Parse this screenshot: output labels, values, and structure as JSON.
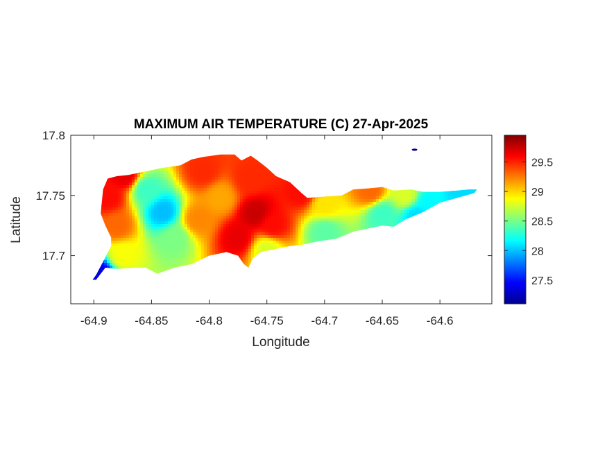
{
  "chart_data": {
    "type": "heatmap",
    "title": "MAXIMUM AIR TEMPERATURE (C) 27-Apr-2025",
    "xlabel": "Longitude",
    "ylabel": "Latitude",
    "xlim": [
      -64.92,
      -64.555
    ],
    "ylim": [
      17.66,
      17.8
    ],
    "x_ticks": [
      -64.9,
      -64.85,
      -64.8,
      -64.75,
      -64.7,
      -64.65,
      -64.6
    ],
    "x_tick_labels": [
      "-64.9",
      "-64.85",
      "-64.8",
      "-64.75",
      "-64.7",
      "-64.65",
      "-64.6"
    ],
    "y_ticks": [
      17.7,
      17.75,
      17.8
    ],
    "y_tick_labels": [
      "17.7",
      "17.75",
      "17.8"
    ],
    "colorbar": {
      "colormap": "jet",
      "range": [
        27.1,
        29.95
      ],
      "ticks": [
        27.5,
        28,
        28.5,
        29,
        29.5
      ],
      "tick_labels": [
        "27.5",
        "28",
        "28.5",
        "29",
        "29.5"
      ]
    },
    "island_outline": [
      [
        -64.898,
        17.68
      ],
      [
        -64.89,
        17.69
      ],
      [
        -64.88,
        17.689
      ],
      [
        -64.865,
        17.69
      ],
      [
        -64.855,
        17.69
      ],
      [
        -64.845,
        17.685
      ],
      [
        -64.83,
        17.69
      ],
      [
        -64.815,
        17.693
      ],
      [
        -64.8,
        17.7
      ],
      [
        -64.785,
        17.703
      ],
      [
        -64.775,
        17.7
      ],
      [
        -64.77,
        17.693
      ],
      [
        -64.766,
        17.69
      ],
      [
        -64.762,
        17.698
      ],
      [
        -64.755,
        17.703
      ],
      [
        -64.745,
        17.705
      ],
      [
        -64.73,
        17.708
      ],
      [
        -64.72,
        17.709
      ],
      [
        -64.705,
        17.712
      ],
      [
        -64.69,
        17.714
      ],
      [
        -64.675,
        17.72
      ],
      [
        -64.66,
        17.723
      ],
      [
        -64.65,
        17.725
      ],
      [
        -64.64,
        17.724
      ],
      [
        -64.63,
        17.73
      ],
      [
        -64.615,
        17.736
      ],
      [
        -64.6,
        17.744
      ],
      [
        -64.585,
        17.748
      ],
      [
        -64.57,
        17.752
      ],
      [
        -64.568,
        17.755
      ],
      [
        -64.575,
        17.755
      ],
      [
        -64.585,
        17.754
      ],
      [
        -64.6,
        17.753
      ],
      [
        -64.615,
        17.753
      ],
      [
        -64.625,
        17.755
      ],
      [
        -64.64,
        17.754
      ],
      [
        -64.65,
        17.757
      ],
      [
        -64.66,
        17.756
      ],
      [
        -64.675,
        17.755
      ],
      [
        -64.685,
        17.75
      ],
      [
        -64.7,
        17.749
      ],
      [
        -64.715,
        17.748
      ],
      [
        -64.72,
        17.752
      ],
      [
        -64.73,
        17.761
      ],
      [
        -64.742,
        17.766
      ],
      [
        -64.75,
        17.773
      ],
      [
        -64.758,
        17.779
      ],
      [
        -64.764,
        17.783
      ],
      [
        -64.772,
        17.779
      ],
      [
        -64.778,
        17.784
      ],
      [
        -64.79,
        17.784
      ],
      [
        -64.805,
        17.782
      ],
      [
        -64.815,
        17.78
      ],
      [
        -64.825,
        17.775
      ],
      [
        -64.84,
        17.773
      ],
      [
        -64.855,
        17.77
      ],
      [
        -64.87,
        17.767
      ],
      [
        -64.88,
        17.766
      ],
      [
        -64.888,
        17.764
      ],
      [
        -64.892,
        17.755
      ],
      [
        -64.894,
        17.735
      ],
      [
        -64.89,
        17.725
      ],
      [
        -64.885,
        17.715
      ],
      [
        -64.885,
        17.708
      ],
      [
        -64.892,
        17.695
      ],
      [
        -64.898,
        17.684
      ],
      [
        -64.901,
        17.68
      ]
    ],
    "islet": [
      -64.622,
      17.788
    ],
    "temperature_hotspots": [
      {
        "lon": -64.76,
        "lat": 17.735,
        "value": 29.9
      },
      {
        "lon": -64.775,
        "lat": 17.715,
        "value": 29.8
      },
      {
        "lon": -64.745,
        "lat": 17.725,
        "value": 29.7
      },
      {
        "lon": -64.765,
        "lat": 17.763,
        "value": 29.6
      },
      {
        "lon": -64.72,
        "lat": 17.752,
        "value": 29.7
      },
      {
        "lon": -64.873,
        "lat": 17.766,
        "value": 29.8
      },
      {
        "lon": -64.887,
        "lat": 17.748,
        "value": 29.7
      },
      {
        "lon": -64.88,
        "lat": 17.725,
        "value": 29.4
      },
      {
        "lon": -64.805,
        "lat": 17.77,
        "value": 29.6
      },
      {
        "lon": -64.81,
        "lat": 17.73,
        "value": 29.3
      },
      {
        "lon": -64.79,
        "lat": 17.748,
        "value": 29.2
      },
      {
        "lon": -64.66,
        "lat": 17.753,
        "value": 29.4
      },
      {
        "lon": -64.7,
        "lat": 17.742,
        "value": 29.0
      },
      {
        "lon": -64.84,
        "lat": 17.736,
        "value": 27.9
      },
      {
        "lon": -64.855,
        "lat": 17.755,
        "value": 28.3
      },
      {
        "lon": -64.83,
        "lat": 17.715,
        "value": 28.5
      },
      {
        "lon": -64.75,
        "lat": 17.705,
        "value": 28.8
      },
      {
        "lon": -64.7,
        "lat": 17.72,
        "value": 28.4
      },
      {
        "lon": -64.65,
        "lat": 17.735,
        "value": 28.3
      },
      {
        "lon": -64.61,
        "lat": 17.743,
        "value": 28.1
      },
      {
        "lon": -64.58,
        "lat": 17.752,
        "value": 28.0
      },
      {
        "lon": -64.63,
        "lat": 17.75,
        "value": 28.8
      },
      {
        "lon": -64.895,
        "lat": 17.684,
        "value": 27.2
      },
      {
        "lon": -64.875,
        "lat": 17.7,
        "value": 28.9
      },
      {
        "lon": -64.62,
        "lat": 17.733,
        "value": 28.0
      }
    ],
    "base_value": 28.6
  }
}
